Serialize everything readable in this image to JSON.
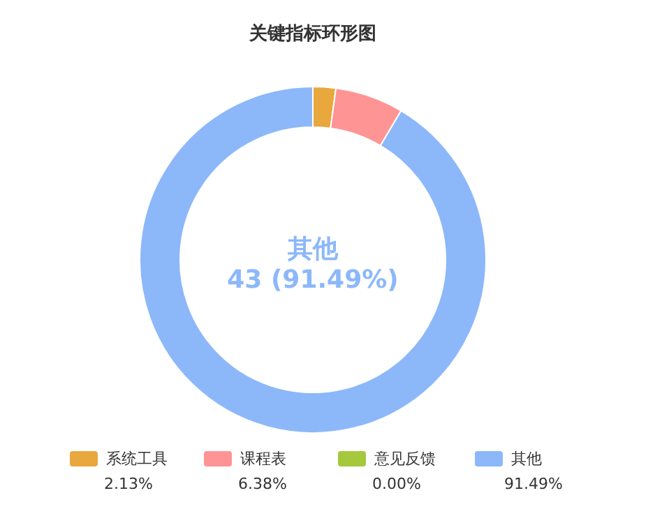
{
  "chart_data": {
    "type": "donut",
    "title": "关键指标环形图",
    "categories": [
      "系统工具",
      "课程表",
      "意见反馈",
      "其他"
    ],
    "values": [
      2.13,
      6.38,
      0,
      91.49
    ],
    "colors": [
      "#e8a83e",
      "#ff9494",
      "#a5c83c",
      "#8cb8fa"
    ],
    "value_labels": [
      "2.13%",
      "6.38%",
      "0.00%",
      "91.49%"
    ],
    "annotations": [
      "其他",
      "43 (91.49%)"
    ],
    "legend": "bottom"
  }
}
